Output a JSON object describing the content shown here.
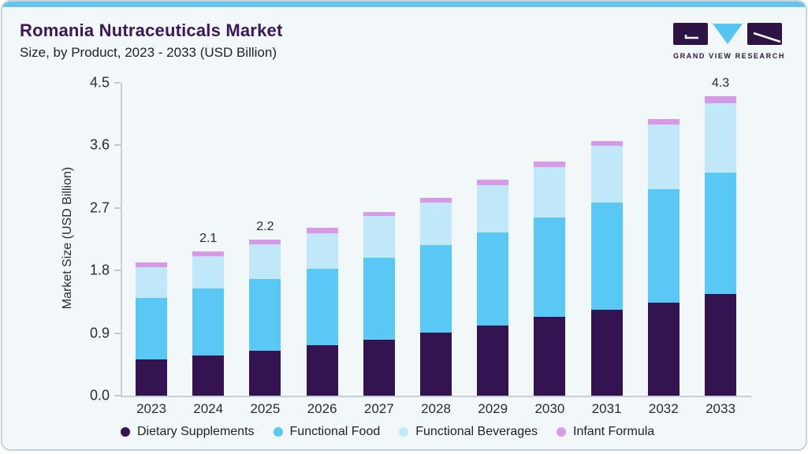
{
  "header": {
    "title": "Romania Nutraceuticals Market",
    "subtitle": "Size, by Product, 2023 - 2033 (USD Billion)"
  },
  "logo": {
    "text": "GRAND VIEW RESEARCH",
    "mark_colors": {
      "block": "#2e1444",
      "triangle": "#56c5f2"
    }
  },
  "colors": {
    "card_background": "#f2f7fa",
    "topbar": "#64c5ee",
    "title_purple": "#3a185a",
    "axis": "#c9ced6"
  },
  "chart_data": {
    "type": "bar",
    "stacked": true,
    "title": "Romania Nutraceuticals Market Size, by Product, 2023 - 2033 (USD Billion)",
    "xlabel": "",
    "ylabel": "Market Size (USD Billion)",
    "categories": [
      "2023",
      "2024",
      "2025",
      "2026",
      "2027",
      "2028",
      "2029",
      "2030",
      "2031",
      "2032",
      "2033"
    ],
    "series": [
      {
        "name": "Dietary Supplements",
        "color": "#331450",
        "values": [
          0.52,
          0.58,
          0.65,
          0.73,
          0.81,
          0.91,
          1.01,
          1.13,
          1.23,
          1.34,
          1.46
        ]
      },
      {
        "name": "Functional Food",
        "color": "#5ac8f5",
        "values": [
          0.89,
          0.96,
          1.03,
          1.09,
          1.17,
          1.25,
          1.34,
          1.43,
          1.55,
          1.63,
          1.75
        ]
      },
      {
        "name": "Functional Beverages",
        "color": "#c1e8f9",
        "values": [
          0.44,
          0.47,
          0.5,
          0.52,
          0.6,
          0.62,
          0.68,
          0.73,
          0.81,
          0.93,
          1.0
        ]
      },
      {
        "name": "Infant Formula",
        "color": "#d69ae6",
        "values": [
          0.06,
          0.06,
          0.06,
          0.07,
          0.06,
          0.07,
          0.08,
          0.08,
          0.07,
          0.08,
          0.1
        ]
      }
    ],
    "bar_labels": [
      "",
      "2.1",
      "2.2",
      "",
      "",
      "",
      "",
      "",
      "",
      "",
      "4.3"
    ],
    "yticks": [
      "0.0",
      "0.9",
      "1.8",
      "2.7",
      "3.6",
      "4.5"
    ],
    "ylim": [
      0,
      4.5
    ],
    "grid": false,
    "legend_position": "bottom"
  }
}
